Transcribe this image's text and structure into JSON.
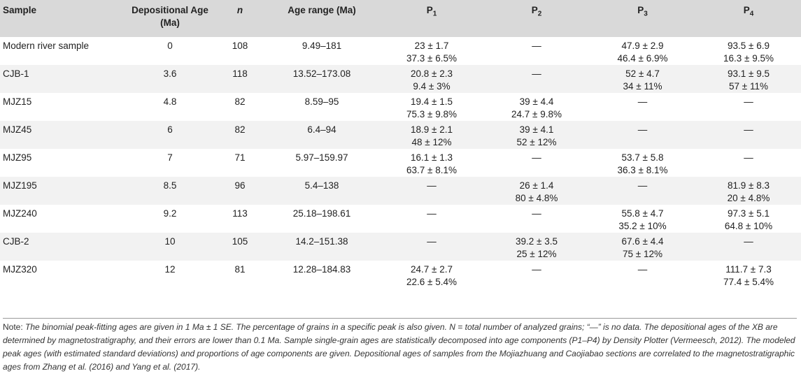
{
  "headers": [
    {
      "text": "Sample"
    },
    {
      "text": "Depositional Age (Ma)"
    },
    {
      "text": "n"
    },
    {
      "text": "Age range (Ma)"
    },
    {
      "text": "P",
      "sub": "1"
    },
    {
      "text": "P",
      "sub": "2"
    },
    {
      "text": "P",
      "sub": "3"
    },
    {
      "text": "P",
      "sub": "4"
    }
  ],
  "rows": [
    {
      "sample": "Modern river sample",
      "age": "0",
      "n": "108",
      "range": "9.49–181",
      "p1": [
        "23 ± 1.7",
        "37.3 ± 6.5%"
      ],
      "p2": [
        "—",
        ""
      ],
      "p3": [
        "47.9 ± 2.9",
        "46.4 ± 6.9%"
      ],
      "p4": [
        "93.5 ± 6.9",
        "16.3 ± 9.5%"
      ]
    },
    {
      "sample": "CJB-1",
      "age": "3.6",
      "n": "118",
      "range": "13.52–173.08",
      "p1": [
        "20.8 ± 2.3",
        "9.4 ± 3%"
      ],
      "p2": [
        "—",
        ""
      ],
      "p3": [
        "52 ± 4.7",
        "34 ± 11%"
      ],
      "p4": [
        "93.1 ± 9.5",
        "57 ± 11%"
      ]
    },
    {
      "sample": "MJZ15",
      "age": "4.8",
      "n": "82",
      "range": "8.59–95",
      "p1": [
        "19.4 ± 1.5",
        "75.3 ± 9.8%"
      ],
      "p2": [
        "39 ± 4.4",
        "24.7 ± 9.8%"
      ],
      "p3": [
        "—",
        ""
      ],
      "p4": [
        "—",
        ""
      ]
    },
    {
      "sample": "MJZ45",
      "age": "6",
      "n": "82",
      "range": "6.4–94",
      "p1": [
        "18.9 ± 2.1",
        "48 ± 12%"
      ],
      "p2": [
        "39 ± 4.1",
        "52 ± 12%"
      ],
      "p3": [
        "—",
        ""
      ],
      "p4": [
        "—",
        ""
      ]
    },
    {
      "sample": "MJZ95",
      "age": "7",
      "n": "71",
      "range": "5.97–159.97",
      "p1": [
        "16.1 ± 1.3",
        "63.7 ± 8.1%"
      ],
      "p2": [
        "—",
        ""
      ],
      "p3": [
        "53.7 ± 5.8",
        "36.3 ± 8.1%"
      ],
      "p4": [
        "—",
        ""
      ]
    },
    {
      "sample": "MJZ195",
      "age": "8.5",
      "n": "96",
      "range": "5.4–138",
      "p1": [
        "—",
        ""
      ],
      "p2": [
        "26 ± 1.4",
        "80 ± 4.8%"
      ],
      "p3": [
        "—",
        ""
      ],
      "p4": [
        "81.9 ± 8.3",
        "20 ± 4.8%"
      ]
    },
    {
      "sample": "MJZ240",
      "age": "9.2",
      "n": "113",
      "range": "25.18–198.61",
      "p1": [
        "—",
        ""
      ],
      "p2": [
        "—",
        ""
      ],
      "p3": [
        "55.8 ± 4.7",
        "35.2 ± 10%"
      ],
      "p4": [
        "97.3 ± 5.1",
        "64.8 ± 10%"
      ]
    },
    {
      "sample": "CJB-2",
      "age": "10",
      "n": "105",
      "range": "14.2–151.38",
      "p1": [
        "—",
        ""
      ],
      "p2": [
        "39.2 ± 3.5",
        "25 ± 12%"
      ],
      "p3": [
        "67.6 ± 4.4",
        "75 ± 12%"
      ],
      "p4": [
        "—",
        ""
      ]
    },
    {
      "sample": "MJZ320",
      "age": "12",
      "n": "81",
      "range": "12.28–184.83",
      "p1": [
        "24.7 ± 2.7",
        "22.6 ± 5.4%"
      ],
      "p2": [
        "—",
        ""
      ],
      "p3": [
        "—",
        ""
      ],
      "p4": [
        "111.7 ± 7.3",
        "77.4 ± 5.4%"
      ]
    }
  ],
  "note": {
    "label": "Note:",
    "text": " The binomial peak-fitting ages are given in 1 Ma ± 1 SE. The percentage of grains in a specific peak is also given. N = total number of analyzed grains; “—” is no data. The depositional ages of the XB are determined by magnetostratigraphy, and their errors are lower than 0.1 Ma. Sample single-grain ages are statistically decomposed into age components (P1–P4) by Density Plotter (Vermeesch, 2012). The modeled peak ages (with estimated standard deviations) and proportions of age components are given. Depositional ages of samples from the Mojiazhuang and Caojiabao sections are correlated to the magnetostratigraphic ages from Zhang et al. (2016) and Yang et al. (2017)."
  }
}
